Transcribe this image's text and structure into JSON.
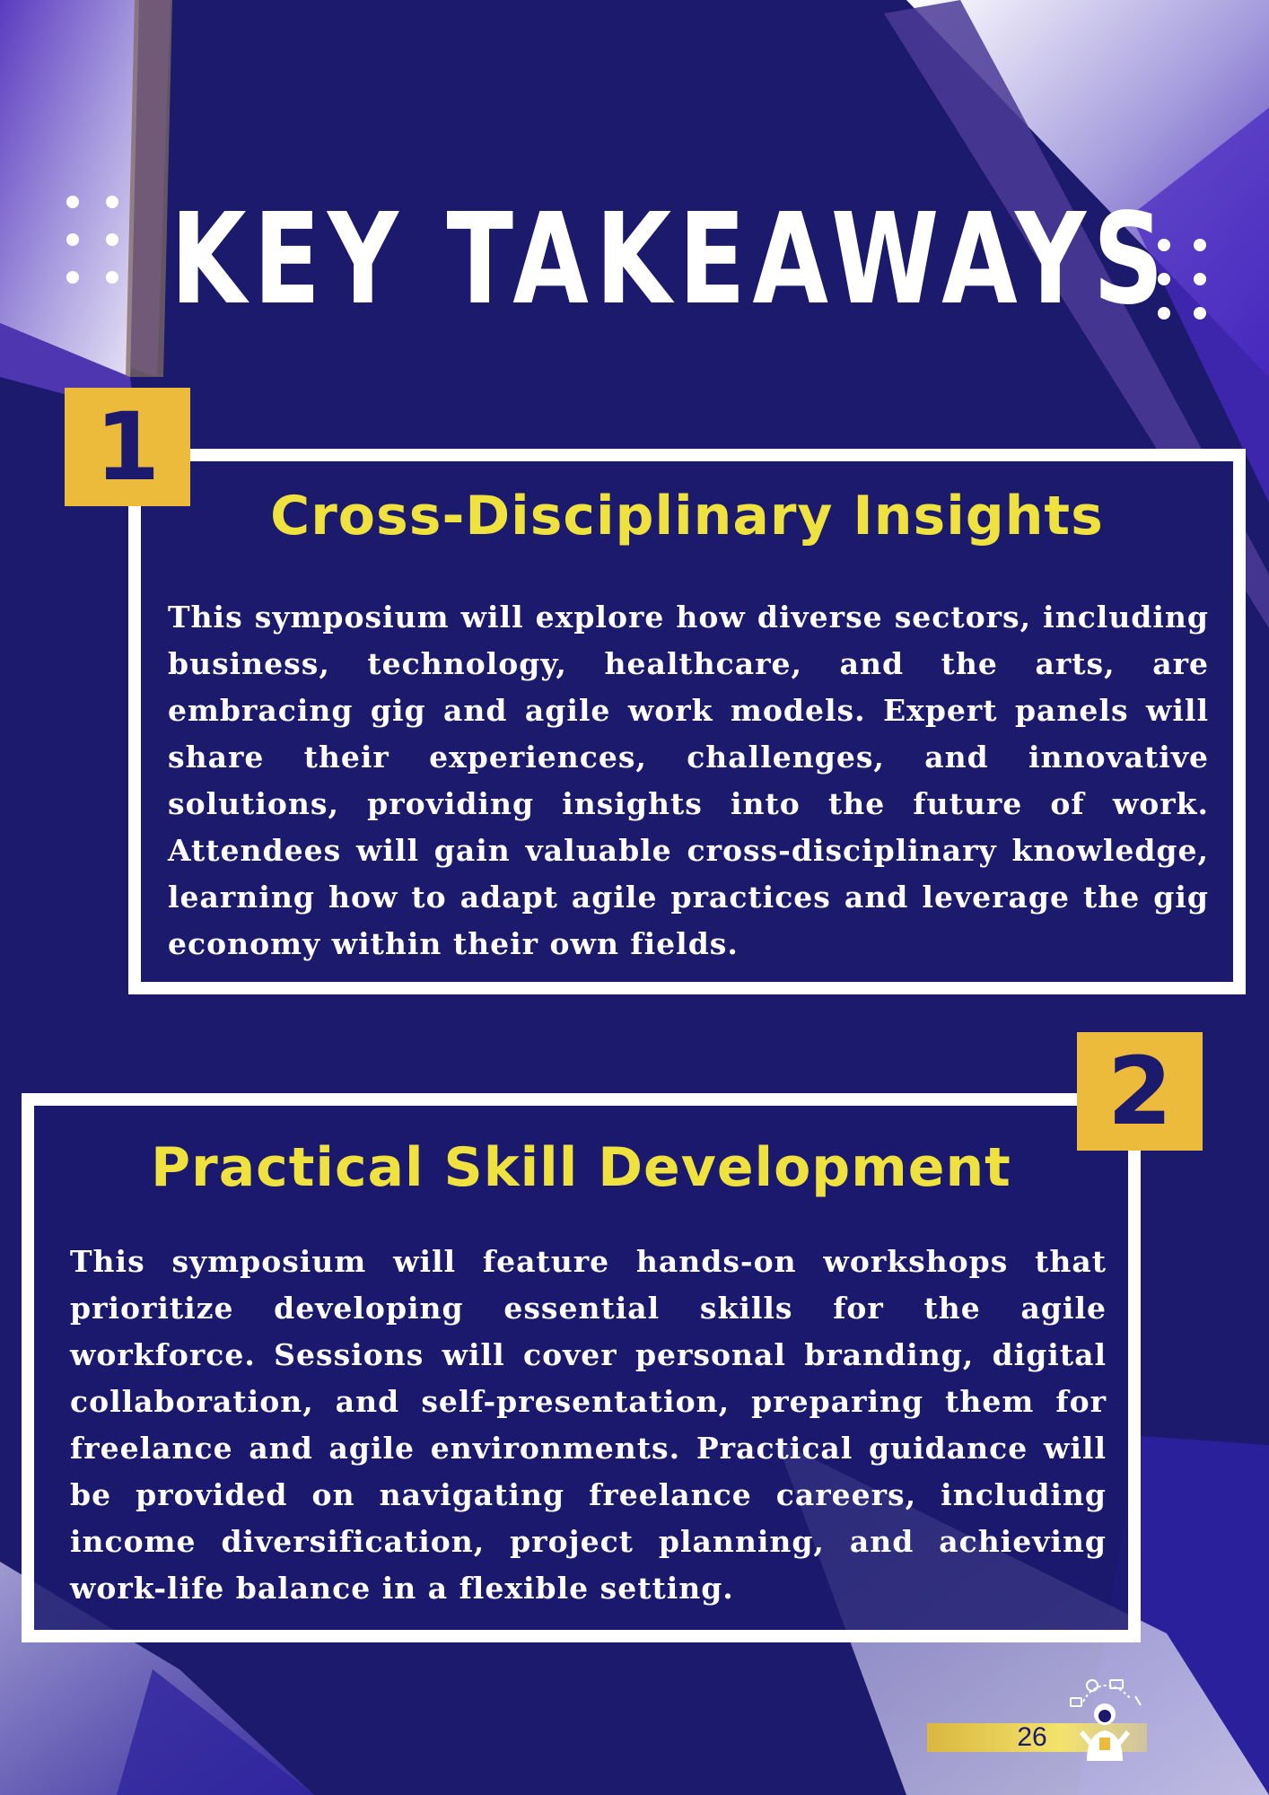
{
  "page": {
    "title": "KEY TAKEAWAYS",
    "page_number": "26"
  },
  "sections": [
    {
      "number": "1",
      "heading": "Cross-Disciplinary Insights",
      "body": "This symposium will explore how diverse sectors, including business, technology, healthcare, and the arts, are embracing gig and agile work models. Expert panels will share their experiences, challenges, and innovative solutions, providing insights into the future of work. Attendees will gain valuable cross-disciplinary knowledge, learning how to adapt agile practices and leverage the gig economy within their own fields."
    },
    {
      "number": "2",
      "heading": "Practical Skill Development",
      "body": "This symposium will feature hands-on workshops that prioritize developing essential skills for the agile workforce. Sessions will cover personal branding, digital collaboration, and self-presentation, preparing them for freelance and agile environments. Practical guidance will be provided on navigating freelance careers, including income diversification, project planning, and achieving work-life balance in a flexible setting."
    }
  ],
  "colors": {
    "background": "#1b1a6d",
    "heading_yellow": "#efe23e",
    "number_box": "#ecbb3c",
    "text": "#ffffff",
    "accent_purple": "#5a3bbf"
  },
  "icons": {
    "decor_left": "dot-grid-icon",
    "decor_right": "dot-grid-icon",
    "footer_mascot": "person-with-devices-icon"
  }
}
